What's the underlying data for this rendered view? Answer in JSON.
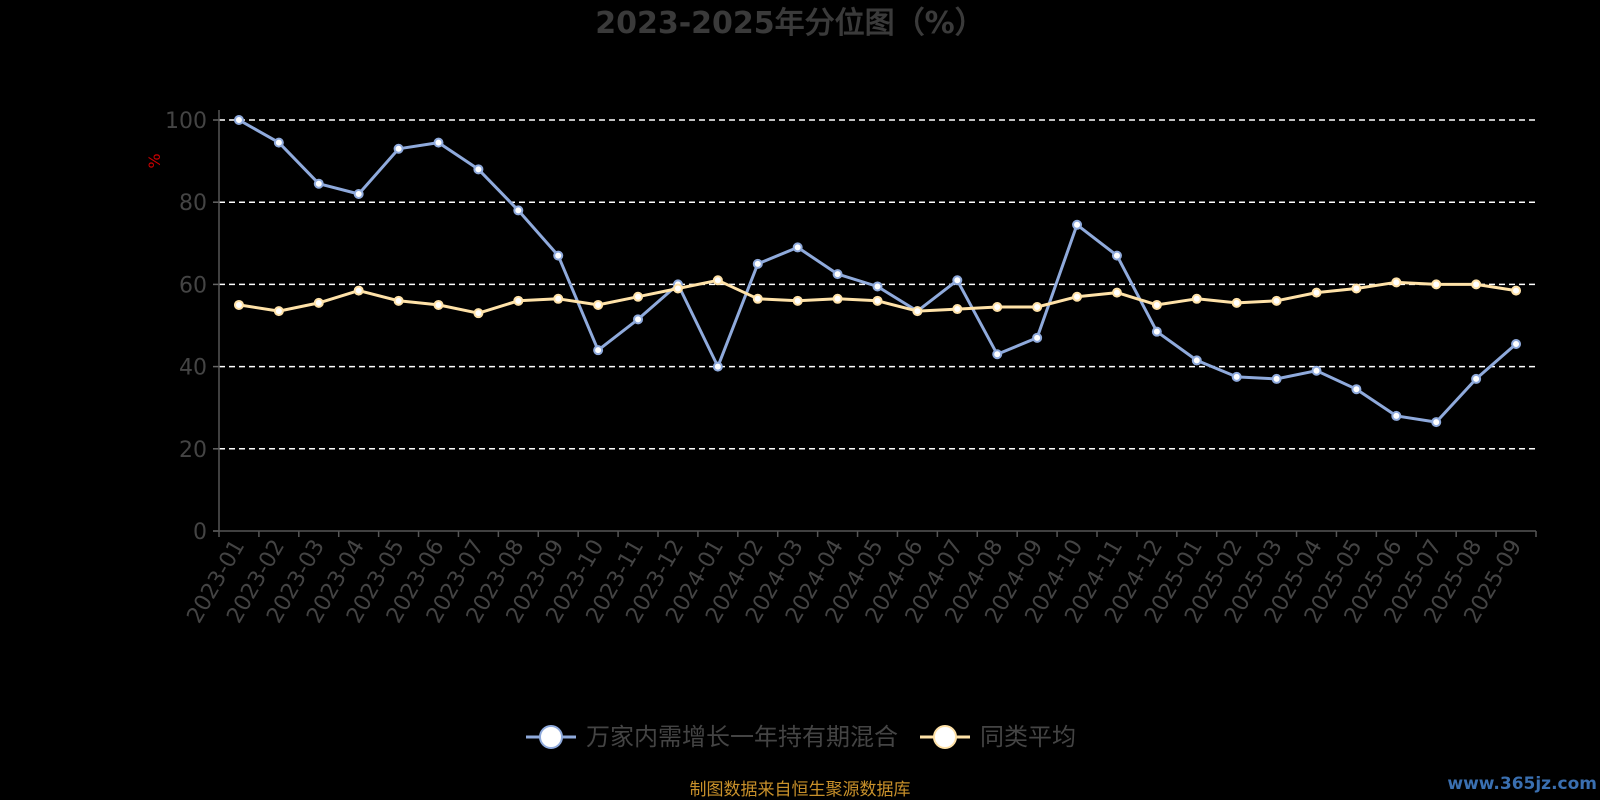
{
  "chart_data": {
    "type": "line",
    "title": "2023-2025年分位图（%）",
    "ylabel": "%",
    "ylim": [
      0,
      100
    ],
    "yticks": [
      0,
      20,
      40,
      60,
      80,
      100
    ],
    "grid": true,
    "legend_position": "bottom",
    "categories": [
      "2023-01",
      "2023-02",
      "2023-03",
      "2023-04",
      "2023-05",
      "2023-06",
      "2023-07",
      "2023-08",
      "2023-09",
      "2023-10",
      "2023-11",
      "2023-12",
      "2024-01",
      "2024-02",
      "2024-03",
      "2024-04",
      "2024-05",
      "2024-06",
      "2024-07",
      "2024-08",
      "2024-09",
      "2024-10",
      "2024-11",
      "2024-12",
      "2025-01",
      "2025-02",
      "2025-03",
      "2025-04",
      "2025-05",
      "2025-06",
      "2025-07",
      "2025-08",
      "2025-09"
    ],
    "series": [
      {
        "name": "万家内需增长一年持有期混合",
        "color": "#8faadc",
        "values": [
          100,
          94.5,
          84.5,
          82,
          93,
          94.5,
          88,
          78,
          67,
          44,
          51.5,
          60,
          40,
          65,
          69,
          62.5,
          59.5,
          53.5,
          61,
          43,
          47,
          74.5,
          67,
          48.5,
          41.5,
          37.5,
          37,
          39,
          34.5,
          28,
          26.5,
          37,
          45.5
        ]
      },
      {
        "name": "同类平均",
        "color": "#ffe2a8",
        "values": [
          55,
          53.5,
          55.5,
          58.5,
          56,
          55,
          53,
          56,
          56.5,
          55,
          57,
          59,
          61,
          56.5,
          56,
          56.5,
          56,
          53.5,
          54,
          54.5,
          54.5,
          57,
          58,
          55,
          56.5,
          55.5,
          56,
          58,
          59,
          60.5,
          60,
          60,
          58.5
        ]
      }
    ]
  },
  "footer": {
    "source": "制图数据来自恒生聚源数据库"
  },
  "watermark": {
    "text": "www.365jz.com"
  }
}
